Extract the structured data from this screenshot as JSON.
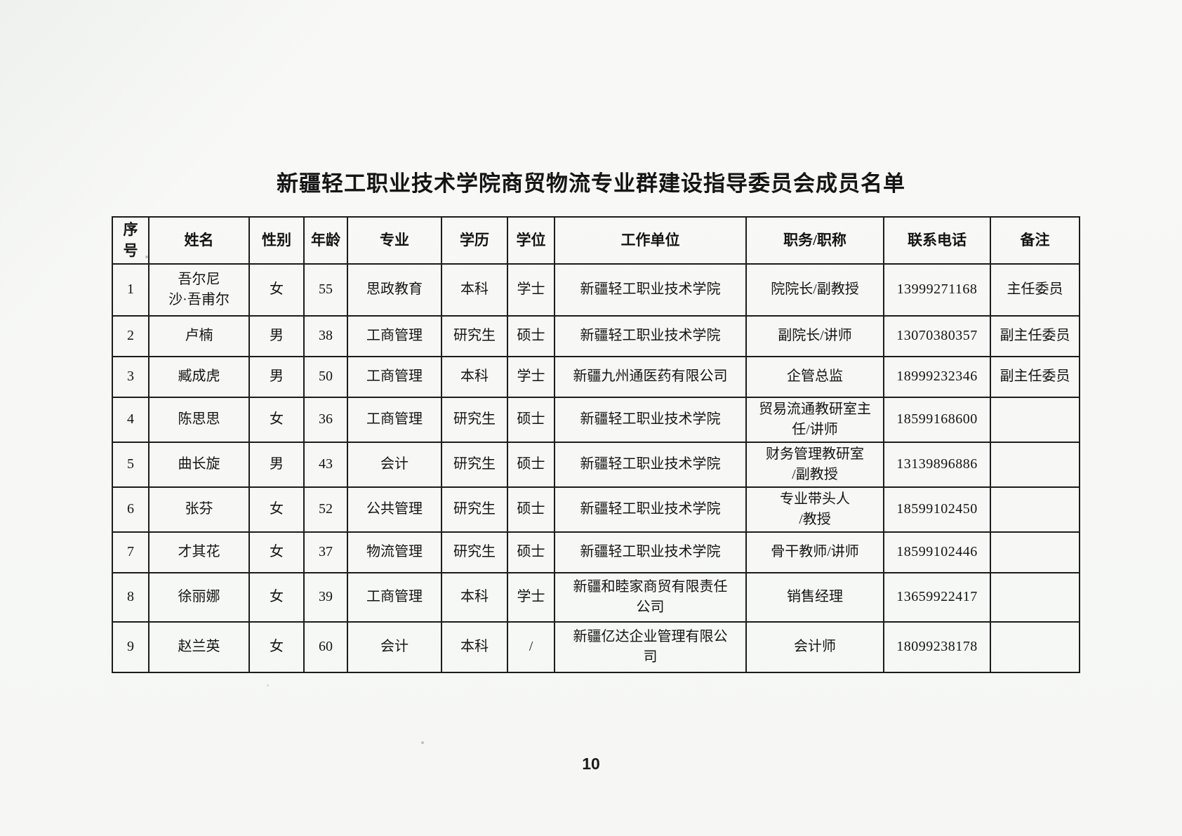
{
  "page": {
    "title": "新疆轻工职业技术学院商贸物流专业群建设指导委员会成员名单",
    "page_number": "10"
  },
  "table": {
    "headers": [
      "序号",
      "姓名",
      "性别",
      "年龄",
      "专业",
      "学历",
      "学位",
      "工作单位",
      "职务/职称",
      "联系电话",
      "备注"
    ],
    "column_keys": [
      "index",
      "name",
      "gender",
      "age",
      "major",
      "education",
      "degree",
      "employer",
      "position",
      "phone",
      "remark"
    ],
    "rows": [
      [
        "1",
        "吾尔尼\n沙·吾甫尔",
        "女",
        "55",
        "思政教育",
        "本科",
        "学士",
        "新疆轻工职业技术学院",
        "院院长/副教授",
        "13999271168",
        "主任委员"
      ],
      [
        "2",
        "卢楠",
        "男",
        "38",
        "工商管理",
        "研究生",
        "硕士",
        "新疆轻工职业技术学院",
        "副院长/讲师",
        "13070380357",
        "副主任委员"
      ],
      [
        "3",
        "臧成虎",
        "男",
        "50",
        "工商管理",
        "本科",
        "学士",
        "新疆九州通医药有限公司",
        "企管总监",
        "18999232346",
        "副主任委员"
      ],
      [
        "4",
        "陈思思",
        "女",
        "36",
        "工商管理",
        "研究生",
        "硕士",
        "新疆轻工职业技术学院",
        "贸易流通教研室主\n任/讲师",
        "18599168600",
        ""
      ],
      [
        "5",
        "曲长旋",
        "男",
        "43",
        "会计",
        "研究生",
        "硕士",
        "新疆轻工职业技术学院",
        "财务管理教研室\n/副教授",
        "13139896886",
        ""
      ],
      [
        "6",
        "张芬",
        "女",
        "52",
        "公共管理",
        "研究生",
        "硕士",
        "新疆轻工职业技术学院",
        "专业带头人\n/教授",
        "18599102450",
        ""
      ],
      [
        "7",
        "才其花",
        "女",
        "37",
        "物流管理",
        "研究生",
        "硕士",
        "新疆轻工职业技术学院",
        "骨干教师/讲师",
        "18599102446",
        ""
      ],
      [
        "8",
        "徐丽娜",
        "女",
        "39",
        "工商管理",
        "本科",
        "学士",
        "新疆和睦家商贸有限责任\n公司",
        "销售经理",
        "13659922417",
        ""
      ],
      [
        "9",
        "赵兰英",
        "女",
        "60",
        "会计",
        "本科",
        "/",
        "新疆亿达企业管理有限公\n司",
        "会计师",
        "18099238178",
        ""
      ]
    ]
  }
}
